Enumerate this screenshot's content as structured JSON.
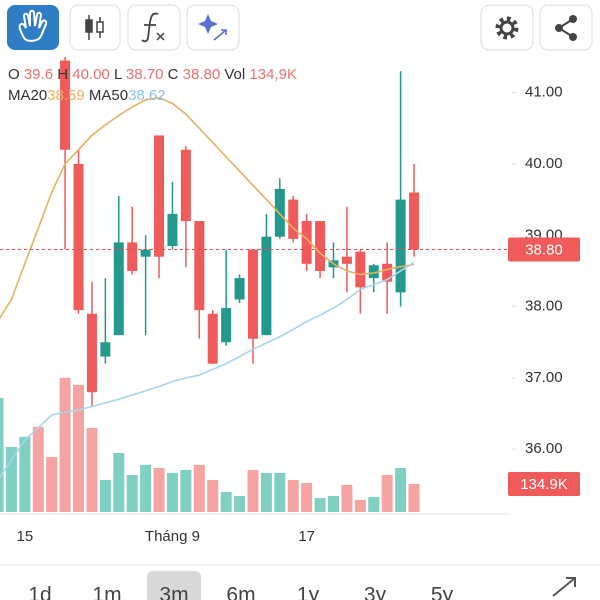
{
  "chart_data": {
    "type": "candlestick",
    "legend": {
      "o_label": "O",
      "o_value": "39.6",
      "h_label": "H",
      "h_value": "40.00",
      "l_label": "L",
      "l_value": "38.70",
      "c_label": "C",
      "c_value": "38.80",
      "vol_label": "Vol",
      "vol_value": "134,9K",
      "ma20_value": "38.59",
      "ma50_value": "38.62"
    },
    "categories": [
      null,
      null,
      "15",
      null,
      null,
      null,
      null,
      null,
      null,
      null,
      null,
      null,
      null,
      "Tháng 9",
      null,
      null,
      null,
      null,
      null,
      null,
      null,
      null,
      null,
      "17",
      null,
      null,
      null,
      null,
      null,
      null,
      null,
      null
    ],
    "open": [
      null,
      null,
      null,
      null,
      null,
      41.45,
      40.0,
      37.9,
      37.3,
      37.6,
      38.9,
      38.7,
      40.4,
      38.85,
      40.2,
      39.2,
      37.9,
      37.5,
      38.1,
      38.8,
      37.6,
      38.98,
      39.5,
      39.2,
      39.2,
      38.55,
      38.7,
      38.77,
      38.4,
      38.6,
      38.2,
      39.6
    ],
    "high": [
      null,
      null,
      null,
      null,
      null,
      41.5,
      40.2,
      38.35,
      38.4,
      39.55,
      39.4,
      39.0,
      40.4,
      39.75,
      40.25,
      39.2,
      37.95,
      38.8,
      38.45,
      38.8,
      39.3,
      39.8,
      39.55,
      39.3,
      39.2,
      38.9,
      39.4,
      38.8,
      38.6,
      38.9,
      41.3,
      40.0
    ],
    "low": [
      null,
      null,
      null,
      null,
      null,
      38.8,
      37.9,
      36.6,
      37.2,
      37.6,
      38.45,
      37.6,
      38.4,
      38.8,
      38.55,
      37.55,
      37.2,
      37.45,
      38.05,
      37.2,
      37.6,
      38.95,
      38.9,
      38.5,
      38.4,
      38.4,
      38.2,
      37.9,
      38.2,
      37.9,
      38.0,
      38.7
    ],
    "close": [
      null,
      null,
      null,
      null,
      null,
      40.2,
      37.95,
      36.8,
      37.5,
      38.9,
      38.5,
      38.8,
      38.7,
      39.3,
      39.2,
      37.95,
      37.2,
      37.98,
      38.4,
      37.55,
      38.98,
      39.65,
      38.95,
      38.6,
      38.5,
      38.65,
      38.6,
      38.27,
      38.58,
      38.35,
      39.5,
      38.8
    ],
    "up_color": "#22998a",
    "down_color": "#ef5a5a",
    "volume": [
      549,
      313,
      362,
      410,
      265,
      646,
      612,
      405,
      154,
      284,
      178,
      227,
      212,
      188,
      202,
      227,
      154,
      96,
      77,
      202,
      188,
      188,
      154,
      140,
      67,
      77,
      130,
      58,
      72,
      178,
      212,
      134.9
    ],
    "volume_colors": [
      "#7fcfc2",
      "#7fcfc2",
      "#7fcfc2",
      "#f5a3a3",
      "#f5a3a3",
      "#f5a3a3",
      "#f5a3a3",
      "#f5a3a3",
      "#7fcfc2",
      "#7fcfc2",
      "#7fcfc2",
      "#7fcfc2",
      "#f5a3a3",
      "#7fcfc2",
      "#7fcfc2",
      "#f5a3a3",
      "#f5a3a3",
      "#7fcfc2",
      "#7fcfc2",
      "#f5a3a3",
      "#7fcfc2",
      "#7fcfc2",
      "#f5a3a3",
      "#f5a3a3",
      "#7fcfc2",
      "#7fcfc2",
      "#f5a3a3",
      "#f5a3a3",
      "#7fcfc2",
      "#f5a3a3",
      "#7fcfc2",
      "#f5a3a3"
    ],
    "series": [
      {
        "name": "MA20",
        "color": "#e9b060",
        "values": [
          37.8,
          38.1,
          38.6,
          39.1,
          39.6,
          40.0,
          40.2,
          40.4,
          40.55,
          40.68,
          40.8,
          40.9,
          40.93,
          40.85,
          40.7,
          40.5,
          40.3,
          40.1,
          39.9,
          39.7,
          39.5,
          39.3,
          39.1,
          38.95,
          38.75,
          38.6,
          38.5,
          38.45,
          38.47,
          38.52,
          38.56,
          38.59
        ]
      },
      {
        "name": "MA50",
        "color": "#a9d4ea",
        "values": [
          35.57,
          35.85,
          36.13,
          36.3,
          36.48,
          36.52,
          36.55,
          36.6,
          36.65,
          36.7,
          36.76,
          36.82,
          36.88,
          36.95,
          37.0,
          37.04,
          37.12,
          37.2,
          37.3,
          37.4,
          37.49,
          37.58,
          37.68,
          37.79,
          37.88,
          37.98,
          38.1,
          38.24,
          38.31,
          38.38,
          38.5,
          38.62
        ]
      }
    ],
    "ylim": [
      35.12,
      41.5
    ],
    "yticks": [
      {
        "value": 36,
        "label": "36.00"
      },
      {
        "value": 37,
        "label": "37.00"
      },
      {
        "value": 38,
        "label": "38.00"
      },
      {
        "value": 39,
        "label": "39.00"
      },
      {
        "value": 40,
        "label": "40.00"
      },
      {
        "value": 41,
        "label": "41.00"
      }
    ],
    "y2lim": [
      0,
      650
    ],
    "last_price": {
      "value": 38.8,
      "label": "38.80"
    },
    "last_volume": {
      "value": 134.9,
      "label": "134.9K"
    }
  },
  "ranges": [
    "1d",
    "1m",
    "3m",
    "6m",
    "1y",
    "3y",
    "5y"
  ],
  "selected_range": "3m"
}
